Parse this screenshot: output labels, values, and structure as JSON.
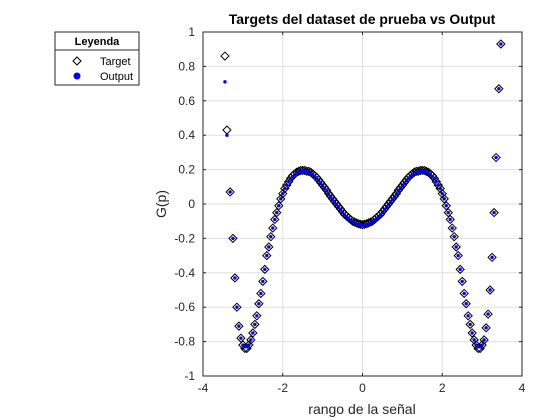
{
  "chart_data": {
    "type": "scatter",
    "title": "Targets del dataset de prueba vs Output",
    "xlabel": "rango de la señal",
    "ylabel": "G(p)",
    "xlim": [
      -4,
      4
    ],
    "ylim": [
      -1,
      1
    ],
    "xticks": [
      "-4",
      "-2",
      "0",
      "2",
      "4"
    ],
    "yticks": [
      "-1",
      "-0.8",
      "-0.6",
      "-0.4",
      "-0.2",
      "0",
      "0.2",
      "0.4",
      "0.6",
      "0.8",
      "1"
    ],
    "grid": true,
    "legend": {
      "title": "Leyenda",
      "placement": "outside-top-left"
    },
    "series": [
      {
        "name": "Target",
        "marker": "diamond-open",
        "color": "#000000",
        "points": [
          [
            -3.45,
            0.86
          ],
          [
            -3.4,
            0.43
          ],
          [
            -3.32,
            0.07
          ],
          [
            -3.25,
            -0.2
          ],
          [
            -3.2,
            -0.43
          ],
          [
            -3.15,
            -0.6
          ],
          [
            -3.1,
            -0.71
          ],
          [
            -3.05,
            -0.78
          ],
          [
            -3.0,
            -0.82
          ],
          [
            -2.95,
            -0.84
          ],
          [
            -2.9,
            -0.84
          ],
          [
            -2.85,
            -0.82
          ],
          [
            -2.8,
            -0.79
          ],
          [
            -2.75,
            -0.75
          ],
          [
            -2.7,
            -0.7
          ],
          [
            -2.65,
            -0.65
          ],
          [
            -2.6,
            -0.58
          ],
          [
            -2.55,
            -0.52
          ],
          [
            -2.5,
            -0.45
          ],
          [
            -2.45,
            -0.38
          ],
          [
            -2.4,
            -0.3
          ],
          [
            -2.35,
            -0.25
          ],
          [
            -2.3,
            -0.19
          ],
          [
            -2.25,
            -0.14
          ],
          [
            -2.2,
            -0.09
          ],
          [
            -2.15,
            -0.05
          ],
          [
            -2.1,
            -0.01
          ],
          [
            -2.05,
            0.03
          ],
          [
            -2.0,
            0.06
          ],
          [
            -1.95,
            0.09
          ],
          [
            -1.9,
            0.11
          ],
          [
            -1.85,
            0.13
          ],
          [
            -1.8,
            0.15
          ],
          [
            -1.75,
            0.165
          ],
          [
            -1.7,
            0.175
          ],
          [
            -1.65,
            0.185
          ],
          [
            -1.6,
            0.19
          ],
          [
            -1.55,
            0.195
          ],
          [
            -1.5,
            0.195
          ],
          [
            -1.45,
            0.195
          ],
          [
            -1.4,
            0.19
          ],
          [
            -1.35,
            0.19
          ],
          [
            -1.3,
            0.185
          ],
          [
            -1.25,
            0.175
          ],
          [
            -1.2,
            0.165
          ],
          [
            -1.15,
            0.155
          ],
          [
            -1.1,
            0.14
          ],
          [
            -1.05,
            0.125
          ],
          [
            -1.0,
            0.11
          ],
          [
            -0.95,
            0.095
          ],
          [
            -0.9,
            0.08
          ],
          [
            -0.85,
            0.06
          ],
          [
            -0.8,
            0.045
          ],
          [
            -0.75,
            0.03
          ],
          [
            -0.7,
            0.015
          ],
          [
            -0.65,
            0.0
          ],
          [
            -0.6,
            -0.015
          ],
          [
            -0.55,
            -0.03
          ],
          [
            -0.5,
            -0.045
          ],
          [
            -0.45,
            -0.06
          ],
          [
            -0.4,
            -0.07
          ],
          [
            -0.35,
            -0.08
          ],
          [
            -0.3,
            -0.09
          ],
          [
            -0.25,
            -0.1
          ],
          [
            -0.2,
            -0.105
          ],
          [
            -0.15,
            -0.11
          ],
          [
            -0.1,
            -0.115
          ],
          [
            -0.05,
            -0.118
          ],
          [
            0.0,
            -0.12
          ],
          [
            0.05,
            -0.118
          ],
          [
            0.1,
            -0.115
          ],
          [
            0.15,
            -0.11
          ],
          [
            0.2,
            -0.105
          ],
          [
            0.25,
            -0.1
          ],
          [
            0.3,
            -0.09
          ],
          [
            0.35,
            -0.08
          ],
          [
            0.4,
            -0.07
          ],
          [
            0.45,
            -0.06
          ],
          [
            0.5,
            -0.045
          ],
          [
            0.55,
            -0.03
          ],
          [
            0.6,
            -0.015
          ],
          [
            0.65,
            0.0
          ],
          [
            0.7,
            0.015
          ],
          [
            0.75,
            0.03
          ],
          [
            0.8,
            0.045
          ],
          [
            0.85,
            0.06
          ],
          [
            0.9,
            0.08
          ],
          [
            0.95,
            0.095
          ],
          [
            1.0,
            0.11
          ],
          [
            1.05,
            0.125
          ],
          [
            1.1,
            0.14
          ],
          [
            1.15,
            0.155
          ],
          [
            1.2,
            0.165
          ],
          [
            1.25,
            0.175
          ],
          [
            1.3,
            0.185
          ],
          [
            1.35,
            0.19
          ],
          [
            1.4,
            0.19
          ],
          [
            1.45,
            0.195
          ],
          [
            1.5,
            0.195
          ],
          [
            1.55,
            0.195
          ],
          [
            1.6,
            0.19
          ],
          [
            1.65,
            0.185
          ],
          [
            1.7,
            0.175
          ],
          [
            1.75,
            0.165
          ],
          [
            1.8,
            0.15
          ],
          [
            1.85,
            0.13
          ],
          [
            1.9,
            0.11
          ],
          [
            1.95,
            0.09
          ],
          [
            2.0,
            0.06
          ],
          [
            2.05,
            0.03
          ],
          [
            2.1,
            -0.01
          ],
          [
            2.15,
            -0.05
          ],
          [
            2.2,
            -0.09
          ],
          [
            2.25,
            -0.14
          ],
          [
            2.3,
            -0.19
          ],
          [
            2.35,
            -0.25
          ],
          [
            2.4,
            -0.3
          ],
          [
            2.45,
            -0.38
          ],
          [
            2.5,
            -0.45
          ],
          [
            2.55,
            -0.52
          ],
          [
            2.6,
            -0.58
          ],
          [
            2.65,
            -0.65
          ],
          [
            2.7,
            -0.7
          ],
          [
            2.75,
            -0.75
          ],
          [
            2.8,
            -0.79
          ],
          [
            2.85,
            -0.82
          ],
          [
            2.9,
            -0.84
          ],
          [
            2.95,
            -0.84
          ],
          [
            3.0,
            -0.82
          ],
          [
            3.05,
            -0.79
          ],
          [
            3.1,
            -0.72
          ],
          [
            3.15,
            -0.64
          ],
          [
            3.2,
            -0.5
          ],
          [
            3.25,
            -0.31
          ],
          [
            3.3,
            -0.05
          ],
          [
            3.35,
            0.27
          ],
          [
            3.42,
            0.67
          ],
          [
            3.47,
            0.93
          ]
        ]
      },
      {
        "name": "Output",
        "marker": "dot-filled",
        "color": "#0000ff",
        "points": [
          [
            -3.45,
            0.71
          ],
          [
            -3.4,
            0.4
          ],
          [
            -3.32,
            0.07
          ],
          [
            -3.25,
            -0.2
          ],
          [
            -3.2,
            -0.43
          ],
          [
            -3.15,
            -0.6
          ],
          [
            -3.1,
            -0.71
          ],
          [
            -3.05,
            -0.78
          ],
          [
            -3.0,
            -0.82
          ],
          [
            -2.95,
            -0.83
          ],
          [
            -2.9,
            -0.83
          ],
          [
            -2.85,
            -0.82
          ],
          [
            -2.8,
            -0.79
          ],
          [
            -2.75,
            -0.75
          ],
          [
            -2.7,
            -0.7
          ],
          [
            -2.65,
            -0.65
          ],
          [
            -2.6,
            -0.58
          ],
          [
            -2.55,
            -0.52
          ],
          [
            -2.5,
            -0.45
          ],
          [
            -2.45,
            -0.38
          ],
          [
            -2.4,
            -0.3
          ],
          [
            -2.35,
            -0.25
          ],
          [
            -2.3,
            -0.19
          ],
          [
            -2.25,
            -0.14
          ],
          [
            -2.2,
            -0.09
          ],
          [
            -2.15,
            -0.05
          ],
          [
            -2.1,
            -0.01
          ],
          [
            -2.05,
            0.03
          ],
          [
            -2.0,
            0.06
          ],
          [
            -1.95,
            0.09
          ],
          [
            -1.9,
            0.11
          ],
          [
            -1.85,
            0.13
          ],
          [
            -1.8,
            0.145
          ],
          [
            -1.75,
            0.16
          ],
          [
            -1.7,
            0.17
          ],
          [
            -1.65,
            0.18
          ],
          [
            -1.6,
            0.185
          ],
          [
            -1.55,
            0.19
          ],
          [
            -1.5,
            0.19
          ],
          [
            -1.45,
            0.19
          ],
          [
            -1.4,
            0.185
          ],
          [
            -1.35,
            0.185
          ],
          [
            -1.3,
            0.18
          ],
          [
            -1.25,
            0.17
          ],
          [
            -1.2,
            0.16
          ],
          [
            -1.15,
            0.15
          ],
          [
            -1.1,
            0.135
          ],
          [
            -1.05,
            0.12
          ],
          [
            -1.0,
            0.105
          ],
          [
            -0.95,
            0.09
          ],
          [
            -0.9,
            0.075
          ],
          [
            -0.85,
            0.055
          ],
          [
            -0.8,
            0.04
          ],
          [
            -0.75,
            0.025
          ],
          [
            -0.7,
            0.01
          ],
          [
            -0.65,
            -0.005
          ],
          [
            -0.6,
            -0.02
          ],
          [
            -0.55,
            -0.035
          ],
          [
            -0.5,
            -0.05
          ],
          [
            -0.45,
            -0.065
          ],
          [
            -0.4,
            -0.075
          ],
          [
            -0.35,
            -0.085
          ],
          [
            -0.3,
            -0.095
          ],
          [
            -0.25,
            -0.105
          ],
          [
            -0.2,
            -0.11
          ],
          [
            -0.15,
            -0.115
          ],
          [
            -0.1,
            -0.12
          ],
          [
            -0.05,
            -0.122
          ],
          [
            0.0,
            -0.125
          ],
          [
            0.05,
            -0.122
          ],
          [
            0.1,
            -0.12
          ],
          [
            0.15,
            -0.115
          ],
          [
            0.2,
            -0.11
          ],
          [
            0.25,
            -0.105
          ],
          [
            0.3,
            -0.095
          ],
          [
            0.35,
            -0.085
          ],
          [
            0.4,
            -0.075
          ],
          [
            0.45,
            -0.065
          ],
          [
            0.5,
            -0.05
          ],
          [
            0.55,
            -0.035
          ],
          [
            0.6,
            -0.02
          ],
          [
            0.65,
            -0.005
          ],
          [
            0.7,
            0.01
          ],
          [
            0.75,
            0.025
          ],
          [
            0.8,
            0.04
          ],
          [
            0.85,
            0.055
          ],
          [
            0.9,
            0.075
          ],
          [
            0.95,
            0.09
          ],
          [
            1.0,
            0.105
          ],
          [
            1.05,
            0.12
          ],
          [
            1.1,
            0.135
          ],
          [
            1.15,
            0.15
          ],
          [
            1.2,
            0.16
          ],
          [
            1.25,
            0.17
          ],
          [
            1.3,
            0.18
          ],
          [
            1.35,
            0.185
          ],
          [
            1.4,
            0.185
          ],
          [
            1.45,
            0.19
          ],
          [
            1.5,
            0.19
          ],
          [
            1.55,
            0.19
          ],
          [
            1.6,
            0.185
          ],
          [
            1.65,
            0.18
          ],
          [
            1.7,
            0.17
          ],
          [
            1.75,
            0.16
          ],
          [
            1.8,
            0.145
          ],
          [
            1.85,
            0.13
          ],
          [
            1.9,
            0.11
          ],
          [
            1.95,
            0.09
          ],
          [
            2.0,
            0.06
          ],
          [
            2.05,
            0.03
          ],
          [
            2.1,
            -0.01
          ],
          [
            2.15,
            -0.05
          ],
          [
            2.2,
            -0.09
          ],
          [
            2.25,
            -0.14
          ],
          [
            2.3,
            -0.19
          ],
          [
            2.35,
            -0.25
          ],
          [
            2.4,
            -0.3
          ],
          [
            2.45,
            -0.38
          ],
          [
            2.5,
            -0.45
          ],
          [
            2.55,
            -0.52
          ],
          [
            2.6,
            -0.58
          ],
          [
            2.65,
            -0.65
          ],
          [
            2.7,
            -0.7
          ],
          [
            2.75,
            -0.75
          ],
          [
            2.8,
            -0.79
          ],
          [
            2.85,
            -0.82
          ],
          [
            2.9,
            -0.83
          ],
          [
            2.95,
            -0.83
          ],
          [
            3.0,
            -0.82
          ],
          [
            3.05,
            -0.79
          ],
          [
            3.1,
            -0.72
          ],
          [
            3.15,
            -0.64
          ],
          [
            3.2,
            -0.5
          ],
          [
            3.25,
            -0.31
          ],
          [
            3.3,
            -0.05
          ],
          [
            3.35,
            0.27
          ],
          [
            3.42,
            0.67
          ],
          [
            3.47,
            0.93
          ]
        ]
      }
    ]
  }
}
